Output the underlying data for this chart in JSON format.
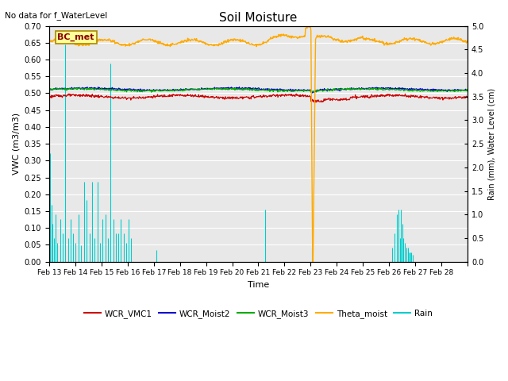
{
  "title": "Soil Moisture",
  "top_left_text": "No data for f_WaterLevel",
  "annotation_box": "BC_met",
  "xlabel": "Time",
  "ylabel_left": "VWC (m3/m3)",
  "ylabel_right": "Rain (mm), Water Level (cm)",
  "ylim_left": [
    0.0,
    0.7
  ],
  "ylim_right": [
    0.0,
    5.0
  ],
  "yticks_left": [
    0.0,
    0.05,
    0.1,
    0.15,
    0.2,
    0.25,
    0.3,
    0.35,
    0.4,
    0.45,
    0.5,
    0.55,
    0.6,
    0.65,
    0.7
  ],
  "yticks_right": [
    0.0,
    0.5,
    1.0,
    1.5,
    2.0,
    2.5,
    3.0,
    3.5,
    4.0,
    4.5,
    5.0
  ],
  "xtick_labels": [
    "Feb 13",
    "Feb 14",
    "Feb 15",
    "Feb 16",
    "Feb 17",
    "Feb 18",
    "Feb 19",
    "Feb 20",
    "Feb 21",
    "Feb 22",
    "Feb 23",
    "Feb 24",
    "Feb 25",
    "Feb 26",
    "Feb 27",
    "Feb 28"
  ],
  "colors": {
    "wcr_vmc1": "#cc0000",
    "wcr_moist2": "#0000cc",
    "wcr_moist3": "#00aa00",
    "theta_moist": "#ffaa00",
    "rain": "#00cccc",
    "background": "#e8e8e8"
  },
  "legend_labels": [
    "WCR_VMC1",
    "WCR_Moist2",
    "WCR_Moist3",
    "Theta_moist",
    "Rain"
  ],
  "n_days": 16,
  "n_points": 1000,
  "wcr_vmc1_base": 0.49,
  "wcr_moist2_base": 0.512,
  "wcr_moist3_base": 0.51,
  "theta_base": 0.651,
  "rain_scale": 0.14
}
